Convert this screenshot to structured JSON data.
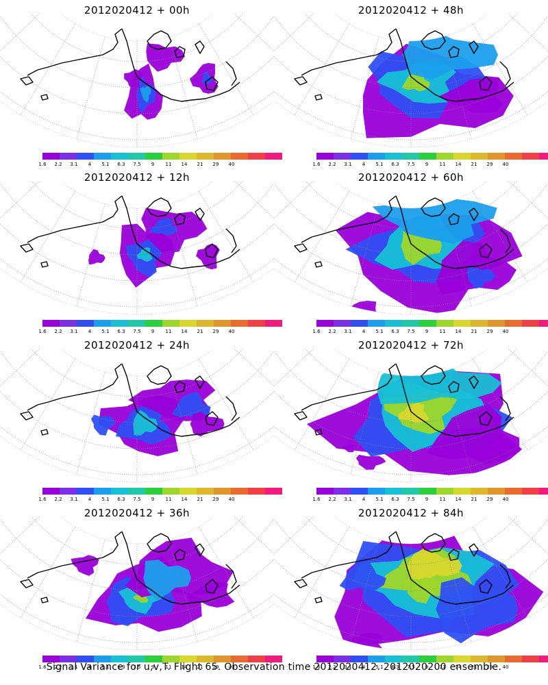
{
  "panels": [
    {
      "title": "2012020412 + 00h",
      "intensity": 0
    },
    {
      "title": "2012020412 + 48h",
      "intensity": 4
    },
    {
      "title": "2012020412 + 12h",
      "intensity": 1
    },
    {
      "title": "2012020412 + 60h",
      "intensity": 5
    },
    {
      "title": "2012020412 + 24h",
      "intensity": 2
    },
    {
      "title": "2012020412 + 72h",
      "intensity": 6
    },
    {
      "title": "2012020412 + 36h",
      "intensity": 3
    },
    {
      "title": "2012020412 + 84h",
      "intensity": 7
    }
  ],
  "colorbar": {
    "colors": [
      "#9a00d9",
      "#7b2ee6",
      "#2f4ff2",
      "#1b9fec",
      "#18c0d6",
      "#20c8a8",
      "#29cf3c",
      "#9ed62c",
      "#d7d72e",
      "#ddb72c",
      "#e1962b",
      "#ea6b30",
      "#ef3f45",
      "#f11b7e"
    ],
    "labels": [
      "1.6",
      "2.2",
      "3.1",
      "4",
      "5.1",
      "6.3",
      "7.5",
      "9",
      "11",
      "14",
      "21",
      "29",
      "40"
    ]
  },
  "footer": "Signal Variance for u,v,T. Flight 65. Observation time 2012020412. 2012020200 ensemble."
}
